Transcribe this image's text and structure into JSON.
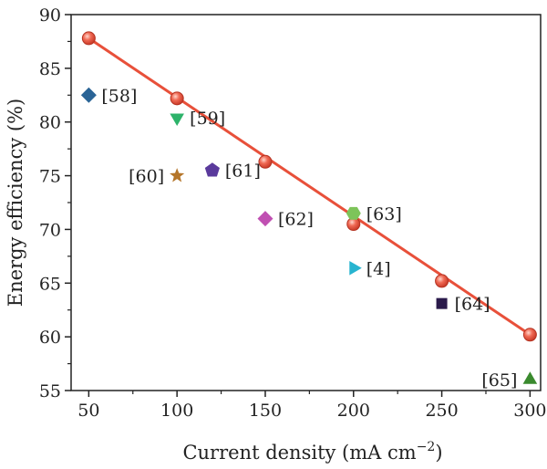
{
  "chart_data": {
    "type": "scatter",
    "xlabel": "Current density (mA cm",
    "xlabel_sup": "−2",
    "xlabel_suffix": ")",
    "ylabel": "Energy efficiency (%)",
    "xlim": [
      40,
      306
    ],
    "ylim": [
      55,
      90
    ],
    "xticks": [
      50,
      100,
      150,
      200,
      250,
      300
    ],
    "yticks": [
      55,
      60,
      65,
      70,
      75,
      80,
      85,
      90
    ],
    "grid": false,
    "fit_line": {
      "color": "#e8503a",
      "points": [
        {
          "x": 50,
          "y": 87.8
        },
        {
          "x": 100,
          "y": 82.2
        },
        {
          "x": 150,
          "y": 76.3
        },
        {
          "x": 200,
          "y": 70.5
        },
        {
          "x": 250,
          "y": 65.2
        },
        {
          "x": 300,
          "y": 60.2
        }
      ]
    },
    "references": [
      {
        "label": "[58]",
        "x": 50,
        "y": 82.5,
        "marker": "diamond",
        "color": "#2a6496",
        "label_side": "right"
      },
      {
        "label": "[59]",
        "x": 100,
        "y": 80.4,
        "marker": "triangle-down",
        "color": "#2db36a",
        "label_side": "right"
      },
      {
        "label": "[60]",
        "x": 100,
        "y": 75.0,
        "marker": "star",
        "color": "#b5762a",
        "label_side": "left"
      },
      {
        "label": "[61]",
        "x": 120,
        "y": 75.5,
        "marker": "pentagon",
        "color": "#5a3a9c",
        "label_side": "right"
      },
      {
        "label": "[62]",
        "x": 150,
        "y": 71.0,
        "marker": "diamond",
        "color": "#c04fb2",
        "label_side": "right"
      },
      {
        "label": "[63]",
        "x": 200,
        "y": 71.5,
        "marker": "hexagon",
        "color": "#7dc45a",
        "label_side": "right"
      },
      {
        "label": "[4]",
        "x": 200,
        "y": 66.4,
        "marker": "triangle-right",
        "color": "#27b4d0",
        "label_side": "right"
      },
      {
        "label": "[64]",
        "x": 250,
        "y": 63.1,
        "marker": "square",
        "color": "#2a1a4a",
        "label_side": "right"
      },
      {
        "label": "[65]",
        "x": 300,
        "y": 56.0,
        "marker": "triangle-up",
        "color": "#3a8a2e",
        "label_side": "left"
      }
    ]
  }
}
